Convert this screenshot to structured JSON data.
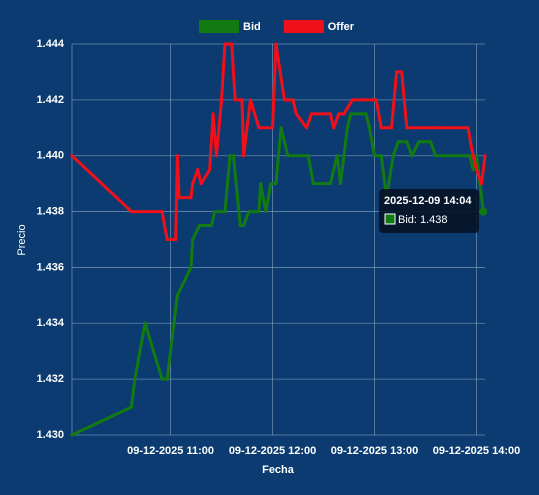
{
  "chart_data": {
    "type": "line",
    "x_label": "Fecha",
    "y_label": "Precio",
    "xlim": [
      "2025-12-09 10:02",
      "2025-12-09 14:05"
    ],
    "xticks": [
      {
        "value": "2025-12-09 11:00",
        "label": "09-12-2025 11:00"
      },
      {
        "value": "2025-12-09 12:00",
        "label": "09-12-2025 12:00"
      },
      {
        "value": "2025-12-09 13:00",
        "label": "09-12-2025 13:00"
      },
      {
        "value": "2025-12-09 14:00",
        "label": "09-12-2025 14:00"
      }
    ],
    "ylim": [
      1.43,
      1.444
    ],
    "yticks": [
      {
        "value": 1.43,
        "label": "1.430"
      },
      1.432,
      1.434,
      1.436,
      1.438,
      {
        "value": 1.44,
        "label": "1.440"
      },
      1.442,
      1.444
    ],
    "grid": true,
    "legend": "top",
    "series": [
      {
        "name": "Bid",
        "color": "#127a12",
        "x": [
          "2025-12-09 10:02",
          "2025-12-09 10:37",
          "2025-12-09 10:39",
          "2025-12-09 10:45",
          "2025-12-09 10:55",
          "2025-12-09 10:58",
          "2025-12-09 11:00",
          "2025-12-09 11:04",
          "2025-12-09 11:12",
          "2025-12-09 11:13",
          "2025-12-09 11:17",
          "2025-12-09 11:24",
          "2025-12-09 11:26",
          "2025-12-09 11:32",
          "2025-12-09 11:35",
          "2025-12-09 11:37",
          "2025-12-09 11:41",
          "2025-12-09 11:43",
          "2025-12-09 11:46",
          "2025-12-09 11:52",
          "2025-12-09 11:53",
          "2025-12-09 11:56",
          "2025-12-09 11:59",
          "2025-12-09 12:02",
          "2025-12-09 12:05",
          "2025-12-09 12:09",
          "2025-12-09 12:21",
          "2025-12-09 12:24",
          "2025-12-09 12:30",
          "2025-12-09 12:34",
          "2025-12-09 12:38",
          "2025-12-09 12:40",
          "2025-12-09 12:42",
          "2025-12-09 12:44",
          "2025-12-09 12:46",
          "2025-12-09 12:55",
          "2025-12-09 12:57",
          "2025-12-09 13:00",
          "2025-12-09 13:04",
          "2025-12-09 13:07",
          "2025-12-09 13:11",
          "2025-12-09 13:14",
          "2025-12-09 13:19",
          "2025-12-09 13:22",
          "2025-12-09 13:26",
          "2025-12-09 13:33",
          "2025-12-09 13:36",
          "2025-12-09 13:56",
          "2025-12-09 13:58",
          "2025-12-09 14:00",
          "2025-12-09 14:02",
          "2025-12-09 14:04"
        ],
        "values": [
          1.43,
          1.431,
          1.432,
          1.434,
          1.432,
          1.432,
          1.433,
          1.435,
          1.436,
          1.437,
          1.4375,
          1.4375,
          1.438,
          1.438,
          1.44,
          1.44,
          1.4375,
          1.4375,
          1.438,
          1.438,
          1.439,
          1.438,
          1.439,
          1.439,
          1.441,
          1.44,
          1.44,
          1.439,
          1.439,
          1.439,
          1.44,
          1.439,
          1.44,
          1.441,
          1.4415,
          1.4415,
          1.441,
          1.44,
          1.44,
          1.4385,
          1.44,
          1.4405,
          1.4405,
          1.44,
          1.4405,
          1.4405,
          1.44,
          1.44,
          1.4395,
          1.44,
          1.439,
          1.438
        ]
      },
      {
        "name": "Offer",
        "color": "#f0101a",
        "x": [
          "2025-12-09 10:02",
          "2025-12-09 10:37",
          "2025-12-09 10:55",
          "2025-12-09 10:58",
          "2025-12-09 11:03",
          "2025-12-09 11:04",
          "2025-12-09 11:05",
          "2025-12-09 11:12",
          "2025-12-09 11:13",
          "2025-12-09 11:16",
          "2025-12-09 11:18",
          "2025-12-09 11:23",
          "2025-12-09 11:25",
          "2025-12-09 11:27",
          "2025-12-09 11:30",
          "2025-12-09 11:32",
          "2025-12-09 11:36",
          "2025-12-09 11:38",
          "2025-12-09 11:42",
          "2025-12-09 11:43",
          "2025-12-09 11:47",
          "2025-12-09 11:52",
          "2025-12-09 12:00",
          "2025-12-09 12:02",
          "2025-12-09 12:07",
          "2025-12-09 12:12",
          "2025-12-09 12:14",
          "2025-12-09 12:20",
          "2025-12-09 12:23",
          "2025-12-09 12:34",
          "2025-12-09 12:36",
          "2025-12-09 12:39",
          "2025-12-09 12:42",
          "2025-12-09 12:47",
          "2025-12-09 12:59",
          "2025-12-09 13:01",
          "2025-12-09 13:04",
          "2025-12-09 13:10",
          "2025-12-09 13:13",
          "2025-12-09 13:16",
          "2025-12-09 13:19",
          "2025-12-09 13:35",
          "2025-12-09 13:55",
          "2025-12-09 13:58",
          "2025-12-09 14:00",
          "2025-12-09 14:03",
          "2025-12-09 14:05"
        ],
        "values": [
          1.44,
          1.438,
          1.438,
          1.437,
          1.437,
          1.44,
          1.4385,
          1.4385,
          1.439,
          1.4395,
          1.439,
          1.4395,
          1.4415,
          1.44,
          1.442,
          1.444,
          1.444,
          1.442,
          1.442,
          1.44,
          1.442,
          1.441,
          1.441,
          1.444,
          1.442,
          1.442,
          1.4415,
          1.441,
          1.4415,
          1.4415,
          1.441,
          1.4415,
          1.4415,
          1.442,
          1.442,
          1.442,
          1.441,
          1.441,
          1.443,
          1.443,
          1.441,
          1.441,
          1.441,
          1.44,
          1.4395,
          1.439,
          1.44
        ]
      }
    ]
  },
  "tooltip": {
    "title": "2025-12-09 14:04",
    "label": "Bid: 1.438"
  }
}
